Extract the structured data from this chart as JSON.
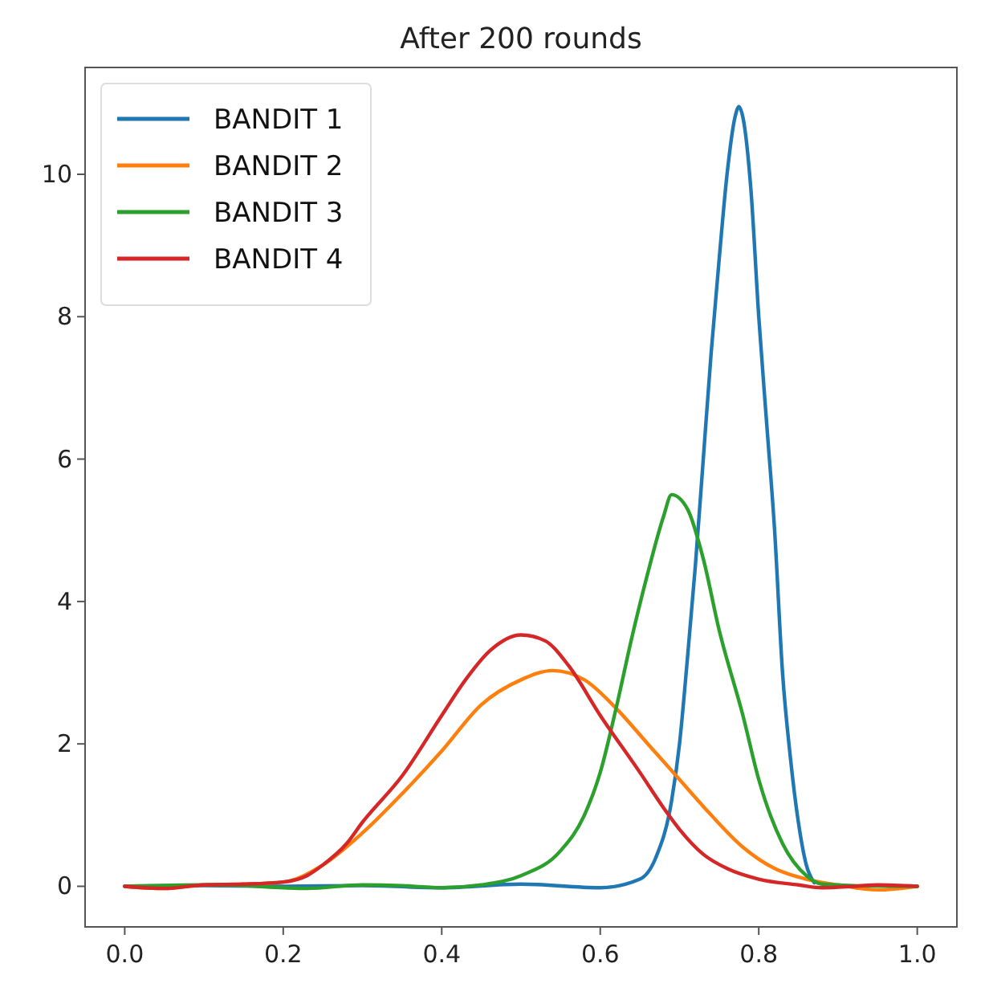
{
  "chart_data": {
    "type": "line",
    "title": "After 200 rounds",
    "xlim": [
      -0.05,
      1.05
    ],
    "ylim": [
      -0.57,
      11.5
    ],
    "xticks": [
      {
        "value": 0,
        "label": "0.0"
      },
      {
        "value": 0.2,
        "label": "0.2"
      },
      {
        "value": 0.4,
        "label": "0.4"
      },
      {
        "value": 0.6,
        "label": "0.6"
      },
      {
        "value": 0.8,
        "label": "0.8"
      },
      {
        "value": 1,
        "label": "1.0"
      }
    ],
    "yticks": [
      0,
      2,
      4,
      6,
      8,
      10
    ],
    "grid": false,
    "legend": "top left",
    "marker": "none",
    "line_style": "solid",
    "series": [
      {
        "name": "BANDIT 1",
        "color": "#1f77b4",
        "x": [
          0,
          0.1,
          0.2,
          0.3,
          0.4,
          0.5,
          0.6,
          0.65,
          0.67,
          0.69,
          0.7,
          0.71,
          0.72,
          0.73,
          0.74,
          0.75,
          0.76,
          0.77,
          0.775,
          0.78,
          0.79,
          0.8,
          0.81,
          0.82,
          0.83,
          0.84,
          0.85,
          0.86,
          0.87
        ],
        "values": [
          0,
          0.01,
          0,
          0.01,
          -0.02,
          0.03,
          -0.02,
          0.1,
          0.4,
          1.2,
          2.0,
          3.2,
          4.5,
          6.0,
          7.5,
          8.8,
          10.0,
          10.8,
          10.95,
          10.8,
          9.8,
          8.0,
          6.5,
          5.0,
          3.0,
          1.8,
          0.9,
          0.3,
          0.05
        ]
      },
      {
        "name": "BANDIT 2",
        "color": "#ff7f0e",
        "x": [
          0,
          0.05,
          0.1,
          0.15,
          0.2,
          0.25,
          0.3,
          0.35,
          0.4,
          0.45,
          0.5,
          0.54,
          0.58,
          0.62,
          0.66,
          0.7,
          0.74,
          0.78,
          0.82,
          0.86,
          0.9,
          0.95,
          1.0
        ],
        "values": [
          0,
          -0.03,
          0.02,
          0.03,
          0.06,
          0.3,
          0.75,
          1.3,
          1.9,
          2.55,
          2.9,
          3.03,
          2.9,
          2.5,
          2.0,
          1.5,
          1.0,
          0.55,
          0.25,
          0.1,
          0.02,
          -0.05,
          0
        ]
      },
      {
        "name": "BANDIT 3",
        "color": "#2ca02c",
        "x": [
          0,
          0.1,
          0.15,
          0.2,
          0.23,
          0.3,
          0.35,
          0.4,
          0.45,
          0.5,
          0.55,
          0.58,
          0.6,
          0.62,
          0.64,
          0.66,
          0.68,
          0.69,
          0.71,
          0.73,
          0.75,
          0.78,
          0.8,
          0.83,
          0.86,
          0.88,
          0.92,
          1.0
        ],
        "values": [
          0,
          0.02,
          0.01,
          -0.02,
          -0.03,
          0.02,
          0.01,
          -0.02,
          0.02,
          0.15,
          0.5,
          1.0,
          1.6,
          2.5,
          3.5,
          4.4,
          5.2,
          5.5,
          5.3,
          4.6,
          3.6,
          2.4,
          1.5,
          0.6,
          0.15,
          0.03,
          0.01,
          0
        ]
      },
      {
        "name": "BANDIT 4",
        "color": "#d62728",
        "x": [
          0,
          0.05,
          0.1,
          0.15,
          0.2,
          0.23,
          0.25,
          0.28,
          0.3,
          0.35,
          0.4,
          0.43,
          0.46,
          0.5,
          0.53,
          0.56,
          0.6,
          0.65,
          0.68,
          0.7,
          0.73,
          0.76,
          0.8,
          0.85,
          0.88,
          0.92,
          0.95,
          1.0
        ],
        "values": [
          0,
          -0.03,
          0.02,
          0.03,
          0.06,
          0.15,
          0.3,
          0.6,
          0.9,
          1.55,
          2.4,
          2.9,
          3.3,
          3.53,
          3.45,
          3.1,
          2.4,
          1.6,
          1.1,
          0.8,
          0.45,
          0.25,
          0.1,
          0.02,
          -0.02,
          0,
          0.02,
          0
        ]
      }
    ]
  }
}
